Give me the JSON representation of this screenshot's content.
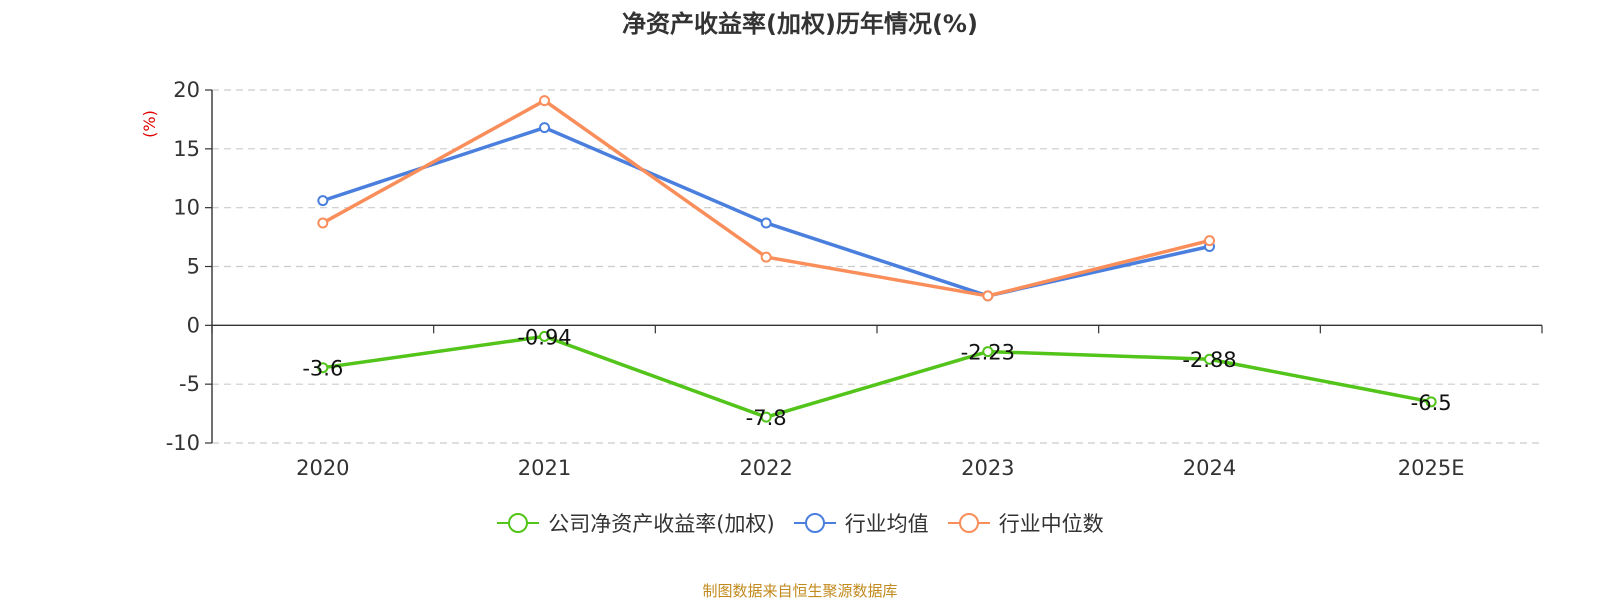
{
  "chart_data": {
    "type": "line",
    "title": "净资产收益率(加权)历年情况(%)",
    "ylabel": "(%)",
    "xlabel": "",
    "categories": [
      "2020",
      "2021",
      "2022",
      "2023",
      "2024",
      "2025E"
    ],
    "ylim": [
      -10,
      20
    ],
    "yticks": [
      20,
      15,
      10,
      5,
      0,
      -5,
      -10
    ],
    "grid": true,
    "legend_position": "bottom",
    "series": [
      {
        "name": "公司净资产收益率(加权)",
        "color": "#52c41a",
        "values": [
          -3.6,
          -0.94,
          -7.8,
          -2.23,
          -2.88,
          -6.5
        ],
        "labels": [
          "-3.6",
          "-0.94",
          "-7.8",
          "-2.23",
          "-2.88",
          "-6.5"
        ]
      },
      {
        "name": "行业均值",
        "color": "#4a7fde",
        "values": [
          10.6,
          16.8,
          8.7,
          2.5,
          6.7,
          null
        ]
      },
      {
        "name": "行业中位数",
        "color": "#f98e5b",
        "values": [
          8.7,
          19.1,
          5.8,
          2.5,
          7.2,
          null
        ]
      }
    ]
  },
  "source_text": "制图数据来自恒生聚源数据库"
}
